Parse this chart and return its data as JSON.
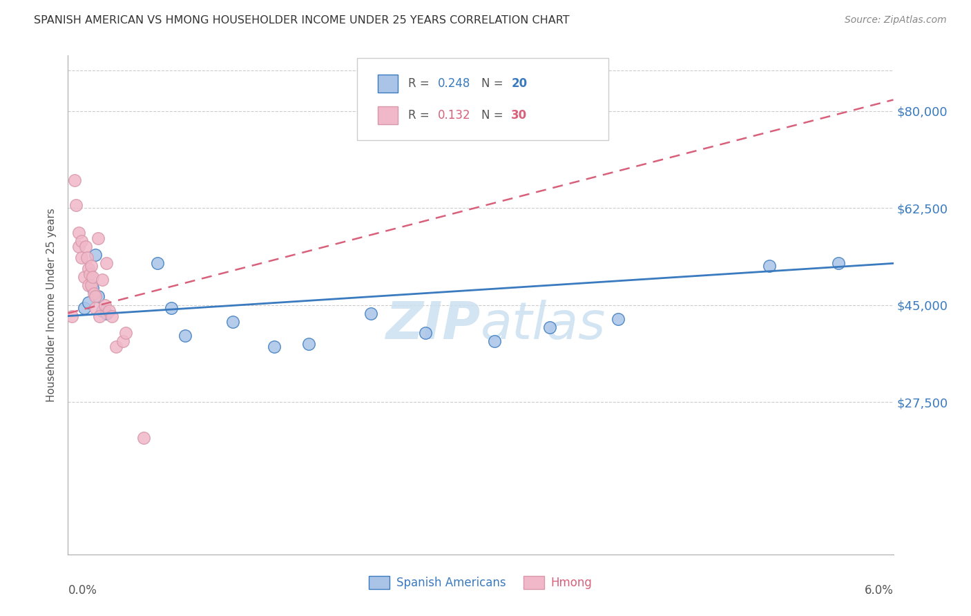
{
  "title": "SPANISH AMERICAN VS HMONG HOUSEHOLDER INCOME UNDER 25 YEARS CORRELATION CHART",
  "source": "Source: ZipAtlas.com",
  "ylabel": "Householder Income Under 25 years",
  "ytick_labels": [
    "$27,500",
    "$45,000",
    "$62,500",
    "$80,000"
  ],
  "ytick_values": [
    27500,
    45000,
    62500,
    80000
  ],
  "xmin": 0.0,
  "xmax": 6.0,
  "ymin": 0,
  "ymax": 90000,
  "R_spanish": 0.248,
  "N_spanish": 20,
  "R_hmong": 0.132,
  "N_hmong": 30,
  "color_spanish": "#aac4e8",
  "color_hmong": "#f0b8c8",
  "line_color_spanish": "#3a7abf",
  "line_color_hmong": "#d9607a",
  "background_color": "#ffffff",
  "watermark_color": "#cce0f0",
  "spanish_x": [
    0.12,
    0.15,
    0.18,
    0.2,
    0.22,
    0.25,
    0.28,
    0.65,
    0.75,
    0.85,
    1.2,
    1.5,
    1.75,
    2.2,
    2.6,
    3.1,
    3.5,
    4.0,
    5.1,
    5.6
  ],
  "spanish_y": [
    44500,
    45500,
    48000,
    54000,
    46500,
    44000,
    43500,
    52500,
    44500,
    39500,
    42000,
    37500,
    38000,
    43500,
    40000,
    38500,
    41000,
    42500,
    52000,
    52500
  ],
  "hmong_x": [
    0.03,
    0.05,
    0.06,
    0.08,
    0.08,
    0.1,
    0.1,
    0.12,
    0.13,
    0.14,
    0.15,
    0.15,
    0.16,
    0.17,
    0.17,
    0.18,
    0.19,
    0.2,
    0.2,
    0.22,
    0.23,
    0.25,
    0.27,
    0.28,
    0.3,
    0.32,
    0.35,
    0.4,
    0.42,
    0.55
  ],
  "hmong_y": [
    43000,
    67500,
    63000,
    58000,
    55500,
    56500,
    53500,
    50000,
    55500,
    53500,
    51500,
    48500,
    50500,
    52000,
    48500,
    50000,
    47000,
    46500,
    44500,
    57000,
    43000,
    49500,
    45000,
    52500,
    44000,
    43000,
    37500,
    38500,
    40000,
    21000
  ]
}
